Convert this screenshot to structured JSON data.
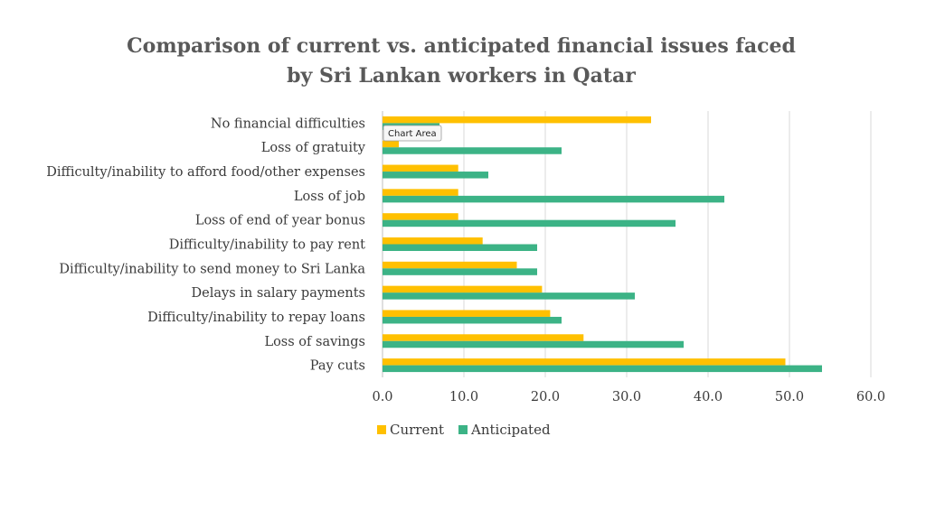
{
  "tooltip": "Chart Area",
  "colors": {
    "current": "#FFC000",
    "anticipated": "#3CB386",
    "grid": "#D9D9D9",
    "text": "#3a3a3a"
  },
  "chart_data": {
    "type": "bar",
    "orientation": "horizontal",
    "title": [
      "Comparison of current vs. anticipated financial issues faced",
      "by Sri Lankan workers in Qatar"
    ],
    "categories": [
      "No financial difficulties",
      "Loss of gratuity",
      "Difficulty/inability to afford food/other expenses",
      "Loss of job",
      "Loss of end of year bonus",
      "Difficulty/inability to pay rent",
      "Difficulty/inability to send money to Sri Lanka",
      "Delays in salary  payments",
      "Difficulty/inability to repay loans",
      "Loss of savings",
      "Pay cuts"
    ],
    "series": [
      {
        "name": "Current",
        "values": [
          33,
          2,
          9.3,
          9.3,
          9.3,
          12.3,
          16.5,
          19.6,
          20.6,
          24.7,
          49.5
        ]
      },
      {
        "name": "Anticipated",
        "values": [
          7,
          22,
          13,
          42,
          36,
          19,
          19,
          31,
          22,
          37,
          54
        ]
      }
    ],
    "xticks": [
      "0.0",
      "10.0",
      "20.0",
      "30.0",
      "40.0",
      "50.0",
      "60.0"
    ],
    "xlim": [
      0,
      60
    ],
    "grid": true,
    "legend": "bottom"
  }
}
